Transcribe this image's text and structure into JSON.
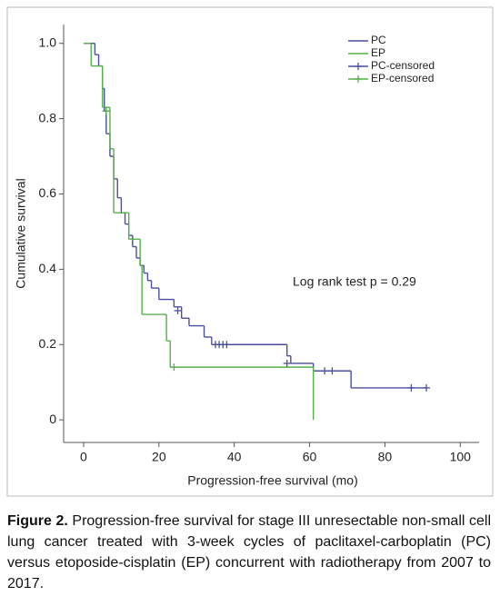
{
  "chart_data": {
    "type": "step",
    "x_label": "Progression-free survival (mo)",
    "y_label": "Cumulative survival",
    "annotation": "Log rank test p = 0.29",
    "xlim": [
      -5.3,
      105
    ],
    "ylim": [
      -0.06,
      1.05
    ],
    "xticks": [
      0,
      20,
      40,
      60,
      80,
      100
    ],
    "yticks": [
      {
        "value": 1,
        "label": "1.0"
      },
      0.8,
      0.6,
      0.4,
      0.2,
      0
    ],
    "legend": "top-right",
    "series": [
      {
        "name": "PC",
        "color": "#4a4fa0",
        "kind": "step",
        "x": [
          0,
          3,
          4,
          5,
          5.5,
          6,
          7,
          8,
          9,
          10,
          11,
          12,
          13,
          14,
          15,
          16,
          17,
          18,
          20,
          24,
          26,
          28,
          32,
          34,
          54,
          55,
          61,
          71,
          91
        ],
        "values": [
          1.0,
          0.97,
          0.94,
          0.88,
          0.82,
          0.76,
          0.7,
          0.64,
          0.59,
          0.55,
          0.52,
          0.49,
          0.46,
          0.43,
          0.41,
          0.39,
          0.37,
          0.35,
          0.32,
          0.3,
          0.27,
          0.25,
          0.22,
          0.2,
          0.17,
          0.15,
          0.13,
          0.085,
          0.085
        ]
      },
      {
        "name": "EP",
        "color": "#55b24a",
        "kind": "step",
        "x": [
          0,
          2,
          5,
          7,
          8,
          12,
          15,
          15.5,
          22,
          23,
          61,
          61
        ],
        "values": [
          1.0,
          0.94,
          0.83,
          0.72,
          0.55,
          0.48,
          0.41,
          0.28,
          0.21,
          0.14,
          0.14,
          0.0
        ]
      },
      {
        "name": "PC-censored",
        "color": "#4a4fa0",
        "kind": "censor",
        "x": [
          6,
          25,
          35,
          36,
          37,
          38,
          54,
          64,
          66,
          87,
          91
        ],
        "values": [
          0.82,
          0.29,
          0.2,
          0.2,
          0.2,
          0.2,
          0.15,
          0.13,
          0.13,
          0.085,
          0.085
        ]
      },
      {
        "name": "EP-censored",
        "color": "#55b24a",
        "kind": "censor",
        "x": [
          6,
          24
        ],
        "values": [
          0.82,
          0.14
        ]
      }
    ]
  },
  "caption": {
    "label": "Figure 2.",
    "text": "Progression-free survival for stage III unresectable non-small cell lung cancer treated with 3-week cycles of paclitaxel-carboplatin (PC) versus etoposide-cisplatin (EP) concurrent with radiotherapy from 2007 to 2017."
  }
}
